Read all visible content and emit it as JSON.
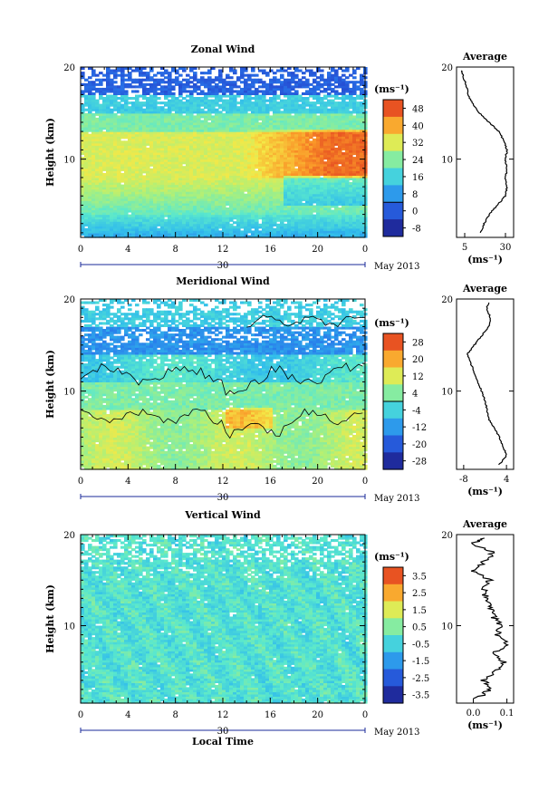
{
  "figure": {
    "xlabel": "Local Time",
    "date_label": "30",
    "month_label": "May 2013",
    "avg_title": "Average",
    "colorbar_unit": "(ms⁻¹)",
    "avg_unit": "(ms⁻¹)"
  },
  "chart_data": [
    {
      "type": "heatmap",
      "title": "Zonal Wind",
      "xlabel": "Local Time",
      "ylabel": "Height (km)",
      "x_ticks": [
        "0",
        "4",
        "8",
        "12",
        "16",
        "20",
        "0"
      ],
      "x_range_hours": [
        0,
        24
      ],
      "y_ticks": [
        "10",
        "20"
      ],
      "y_range_km": [
        1.5,
        20
      ],
      "colorbar_ticks": [
        "48",
        "40",
        "32",
        "24",
        "16",
        "8",
        "0",
        "-8"
      ],
      "colorbar_range": [
        -12,
        52
      ],
      "average_profile": {
        "title": "Average",
        "x_ticks": [
          "5",
          "30"
        ],
        "x_range": [
          0,
          35
        ],
        "height_km": [
          2,
          3,
          4,
          5,
          6,
          7,
          8,
          9,
          10,
          11,
          12,
          13,
          14,
          15,
          16,
          17,
          18,
          19,
          19.7
        ],
        "value": [
          15,
          17,
          20,
          25,
          30,
          31,
          30,
          31,
          30,
          31,
          29,
          26,
          20,
          14,
          10,
          7,
          6,
          4,
          3
        ]
      }
    },
    {
      "type": "heatmap",
      "title": "Meridional Wind",
      "xlabel": "Local Time",
      "ylabel": "Height (km)",
      "x_ticks": [
        "0",
        "4",
        "8",
        "12",
        "16",
        "20",
        "0"
      ],
      "x_range_hours": [
        0,
        24
      ],
      "y_ticks": [
        "10",
        "20"
      ],
      "y_range_km": [
        1.5,
        20
      ],
      "colorbar_ticks": [
        "28",
        "20",
        "12",
        "4",
        "-4",
        "-12",
        "-20",
        "-28"
      ],
      "colorbar_range": [
        -32,
        32
      ],
      "zero_contour": true,
      "average_profile": {
        "title": "Average",
        "x_ticks": [
          "-8",
          "4"
        ],
        "x_range": [
          -10,
          6
        ],
        "height_km": [
          2,
          3,
          4,
          5,
          6,
          7,
          8,
          9,
          10,
          11,
          12,
          13,
          14,
          15,
          16,
          17,
          18,
          19,
          19.7
        ],
        "value": [
          2,
          4,
          3,
          2,
          0.5,
          -1,
          -1.5,
          -2,
          -3,
          -4,
          -5,
          -6,
          -7,
          -5,
          -3,
          -1,
          -0.5,
          -1.5,
          -1
        ]
      }
    },
    {
      "type": "heatmap",
      "title": "Vertical Wind",
      "xlabel": "Local Time",
      "ylabel": "Height (km)",
      "x_ticks": [
        "0",
        "4",
        "8",
        "12",
        "16",
        "20",
        "0"
      ],
      "x_range_hours": [
        0,
        24
      ],
      "y_ticks": [
        "10",
        "20"
      ],
      "y_range_km": [
        1.5,
        20
      ],
      "colorbar_ticks": [
        "3.5",
        "2.5",
        "1.5",
        "0.5",
        "-0.5",
        "-1.5",
        "-2.5",
        "-3.5"
      ],
      "colorbar_range": [
        -4,
        4
      ],
      "average_profile": {
        "title": "Average",
        "x_ticks": [
          "0.0",
          "0.1"
        ],
        "x_range": [
          -0.05,
          0.12
        ],
        "height_km": [
          2,
          3,
          4,
          5,
          6,
          7,
          8,
          9,
          10,
          11,
          12,
          13,
          14,
          15,
          16,
          17,
          18,
          19,
          19.7
        ],
        "value": [
          0.01,
          0.05,
          0.03,
          0.07,
          0.09,
          0.06,
          0.1,
          0.07,
          0.08,
          0.06,
          0.05,
          0.04,
          0.03,
          0.05,
          0.0,
          0.03,
          0.06,
          0.0,
          0.04
        ]
      }
    }
  ]
}
